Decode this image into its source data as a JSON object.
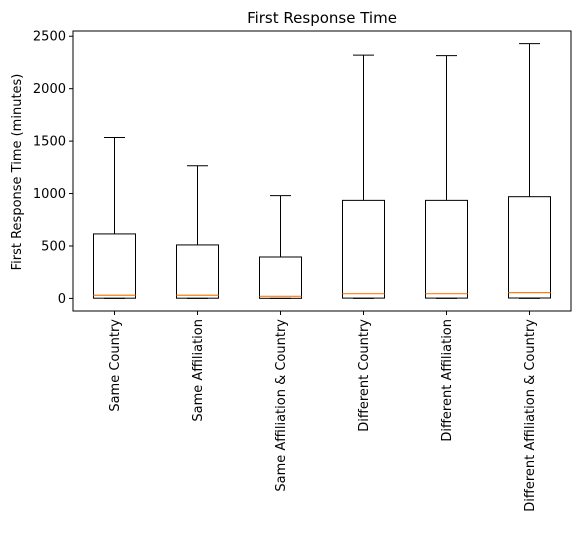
{
  "chart_data": {
    "type": "box",
    "title": "First Response Time",
    "xlabel": "",
    "ylabel": "First Response Time (minutes)",
    "ylim": [
      -120,
      2550
    ],
    "yticks": [
      0,
      500,
      1000,
      1500,
      2000,
      2500
    ],
    "grid": false,
    "categories": [
      "Same Country",
      "Same Affiliation",
      "Same Affiliation & Country",
      "Different Country",
      "Different Affiliation",
      "Different Affiliation & Country"
    ],
    "boxes": [
      {
        "whisker_low": 0,
        "q1": 2,
        "median": 30,
        "q3": 615,
        "whisker_high": 1535
      },
      {
        "whisker_low": 0,
        "q1": 2,
        "median": 30,
        "q3": 510,
        "whisker_high": 1265
      },
      {
        "whisker_low": 0,
        "q1": 1,
        "median": 20,
        "q3": 395,
        "whisker_high": 980
      },
      {
        "whisker_low": 0,
        "q1": 3,
        "median": 45,
        "q3": 935,
        "whisker_high": 2320
      },
      {
        "whisker_low": 0,
        "q1": 3,
        "median": 45,
        "q3": 935,
        "whisker_high": 2315
      },
      {
        "whisker_low": 0,
        "q1": 4,
        "median": 55,
        "q3": 970,
        "whisker_high": 2430
      }
    ],
    "colors": {
      "box": "#000000",
      "median": "#ff7f0e"
    }
  }
}
